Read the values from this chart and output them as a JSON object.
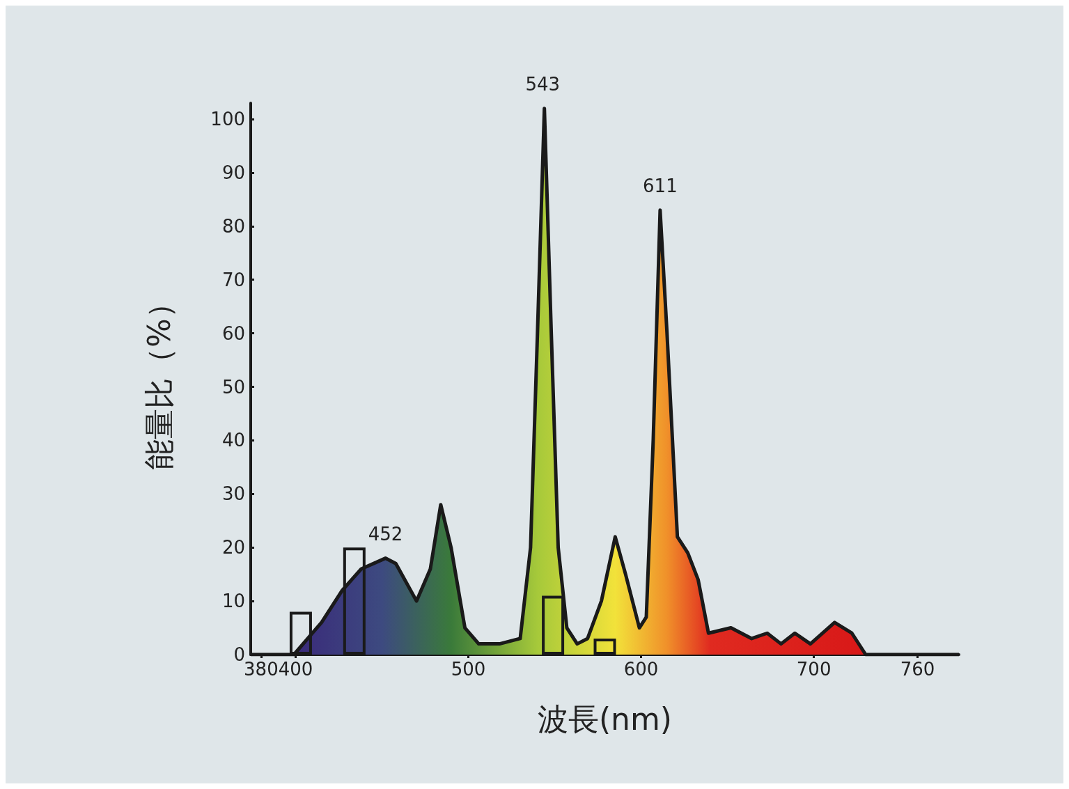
{
  "chart_data": {
    "type": "area",
    "xlabel": "波長(nm)",
    "ylabel": "能量比（%）",
    "xlim": [
      374,
      784
    ],
    "ylim": [
      0,
      103
    ],
    "xticks": [
      380,
      400,
      500,
      600,
      700,
      760
    ],
    "yticks": [
      0,
      10,
      20,
      30,
      40,
      50,
      60,
      70,
      80,
      90,
      100
    ],
    "grid": false,
    "marker": "none",
    "series": [
      {
        "color": "#1a1a1a",
        "x": [
          374,
          399,
          407,
          415,
          427,
          438,
          452,
          458,
          470,
          478,
          484,
          490,
          498,
          506,
          518,
          530,
          536,
          540,
          544,
          548,
          552,
          557,
          563,
          569,
          577,
          585,
          591,
          599,
          603,
          607,
          611,
          615,
          621,
          627,
          633,
          639,
          652,
          664,
          673,
          681,
          689,
          698,
          712,
          722,
          730,
          784
        ],
        "values": [
          0,
          0,
          3,
          6,
          12,
          16,
          18,
          17,
          10,
          16,
          28,
          20,
          5,
          2,
          2,
          3,
          20,
          60,
          102,
          60,
          20,
          5,
          2,
          3,
          10,
          22,
          15,
          5,
          7,
          40,
          83,
          60,
          22,
          19,
          14,
          4,
          5,
          3,
          4,
          2,
          4,
          2,
          6,
          4,
          0,
          0
        ]
      },
      {
        "type": "bar",
        "color": "#1a1a1a",
        "x": [
          403,
          434,
          549,
          579
        ],
        "values": [
          8,
          20,
          11,
          3
        ]
      }
    ],
    "annotations": [
      {
        "text": "452",
        "x": 452,
        "y": 18
      },
      {
        "text": "543",
        "x": 543,
        "y": 102
      },
      {
        "text": "611",
        "x": 611,
        "y": 83
      }
    ]
  }
}
